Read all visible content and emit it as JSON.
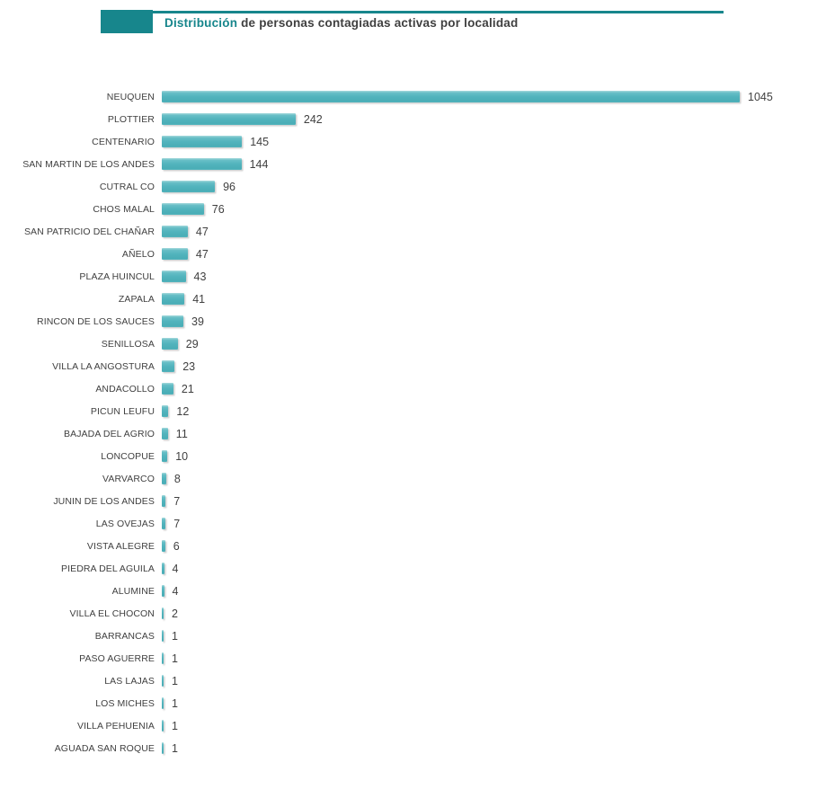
{
  "header": {
    "title_highlight": "Distribución",
    "title_rest": " de personas contagiadas activas por localidad",
    "accent_color": "#17868C"
  },
  "chart_data": {
    "type": "bar",
    "orientation": "horizontal",
    "title": "Distribución de personas contagiadas activas por localidad",
    "xlabel": "",
    "ylabel": "",
    "xlim": [
      0,
      1045
    ],
    "grid": false,
    "legend": false,
    "value_labels": true,
    "bar_color": "#52B4BD",
    "categories": [
      "NEUQUEN",
      "PLOTTIER",
      "CENTENARIO",
      "SAN MARTIN DE LOS ANDES",
      "CUTRAL CO",
      "CHOS MALAL",
      "SAN PATRICIO DEL CHAÑAR",
      "AÑELO",
      "PLAZA HUINCUL",
      "ZAPALA",
      "RINCON DE LOS SAUCES",
      "SENILLOSA",
      "VILLA LA ANGOSTURA",
      "ANDACOLLO",
      "PICUN LEUFU",
      "BAJADA DEL AGRIO",
      "LONCOPUE",
      "VARVARCO",
      "JUNIN DE LOS ANDES",
      "LAS OVEJAS",
      "VISTA ALEGRE",
      "PIEDRA DEL AGUILA",
      "ALUMINE",
      "VILLA EL CHOCON",
      "BARRANCAS",
      "PASO AGUERRE",
      "LAS LAJAS",
      "LOS MICHES",
      "VILLA PEHUENIA",
      "AGUADA SAN ROQUE"
    ],
    "values": [
      1045,
      242,
      145,
      144,
      96,
      76,
      47,
      47,
      43,
      41,
      39,
      29,
      23,
      21,
      12,
      11,
      10,
      8,
      7,
      7,
      6,
      4,
      4,
      2,
      1,
      1,
      1,
      1,
      1,
      1
    ]
  }
}
